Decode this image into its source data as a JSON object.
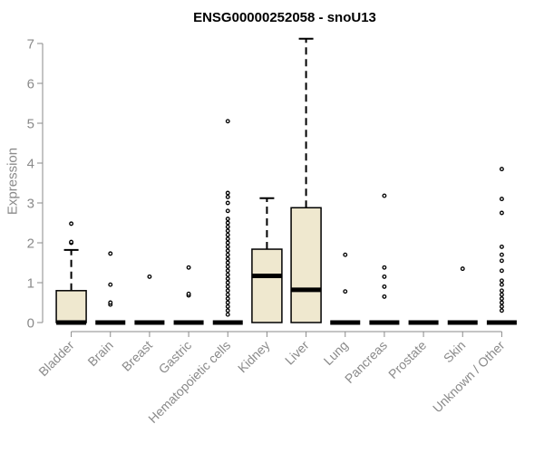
{
  "chart_data": {
    "type": "box",
    "title": "ENSG00000252058 - snoU13",
    "xlabel": "",
    "ylabel": "Expression",
    "ylim": [
      0,
      7.1
    ],
    "yticks": [
      0,
      1,
      2,
      3,
      4,
      5,
      6,
      7
    ],
    "categories": [
      "Bladder",
      "Brain",
      "Breast",
      "Gastric",
      "Hematopoietic cells",
      "Kidney",
      "Liver",
      "Lung",
      "Pancreas",
      "Prostate",
      "Skin",
      "Unknown / Other"
    ],
    "fill_color": "#efe8cf",
    "boxes": [
      {
        "q1": 0,
        "median": 0,
        "q3": 0.8,
        "whisker_low": 0,
        "whisker_high": 1.82,
        "outliers": [
          2.0,
          2.02,
          2.48
        ]
      },
      {
        "q1": 0,
        "median": 0,
        "q3": 0,
        "whisker_low": 0,
        "whisker_high": 0,
        "outliers": [
          0.45,
          0.5,
          0.95,
          1.73
        ]
      },
      {
        "q1": 0,
        "median": 0,
        "q3": 0,
        "whisker_low": 0,
        "whisker_high": 0,
        "outliers": [
          1.15
        ]
      },
      {
        "q1": 0,
        "median": 0,
        "q3": 0,
        "whisker_low": 0,
        "whisker_high": 0,
        "outliers": [
          0.68,
          0.72,
          1.38
        ]
      },
      {
        "q1": 0,
        "median": 0,
        "q3": 0,
        "whisker_low": 0,
        "whisker_high": 0,
        "outliers": [
          0.2,
          0.3,
          0.4,
          0.5,
          0.6,
          0.7,
          0.8,
          0.9,
          1.0,
          1.1,
          1.2,
          1.3,
          1.4,
          1.5,
          1.6,
          1.7,
          1.8,
          1.9,
          2.0,
          2.1,
          2.2,
          2.3,
          2.4,
          2.5,
          2.6,
          2.8,
          3.0,
          3.15,
          3.25,
          5.05
        ]
      },
      {
        "q1": 0,
        "median": 1.17,
        "q3": 1.84,
        "whisker_low": 0,
        "whisker_high": 3.12,
        "outliers": []
      },
      {
        "q1": 0,
        "median": 0.82,
        "q3": 2.88,
        "whisker_low": 0,
        "whisker_high": 7.12,
        "outliers": []
      },
      {
        "q1": 0,
        "median": 0,
        "q3": 0,
        "whisker_low": 0,
        "whisker_high": 0,
        "outliers": [
          0.78,
          1.7
        ]
      },
      {
        "q1": 0,
        "median": 0,
        "q3": 0,
        "whisker_low": 0,
        "whisker_high": 0,
        "outliers": [
          0.65,
          0.9,
          1.15,
          1.38,
          3.18
        ]
      },
      {
        "q1": 0,
        "median": 0,
        "q3": 0,
        "whisker_low": 0,
        "whisker_high": 0,
        "outliers": []
      },
      {
        "q1": 0,
        "median": 0,
        "q3": 0,
        "whisker_low": 0,
        "whisker_high": 0,
        "outliers": [
          1.35
        ]
      },
      {
        "q1": 0,
        "median": 0,
        "q3": 0,
        "whisker_low": 0,
        "whisker_high": 0,
        "outliers": [
          0.3,
          0.4,
          0.5,
          0.6,
          0.7,
          0.8,
          0.95,
          1.05,
          1.3,
          1.55,
          1.7,
          1.9,
          2.75,
          3.1,
          3.85
        ]
      }
    ]
  }
}
